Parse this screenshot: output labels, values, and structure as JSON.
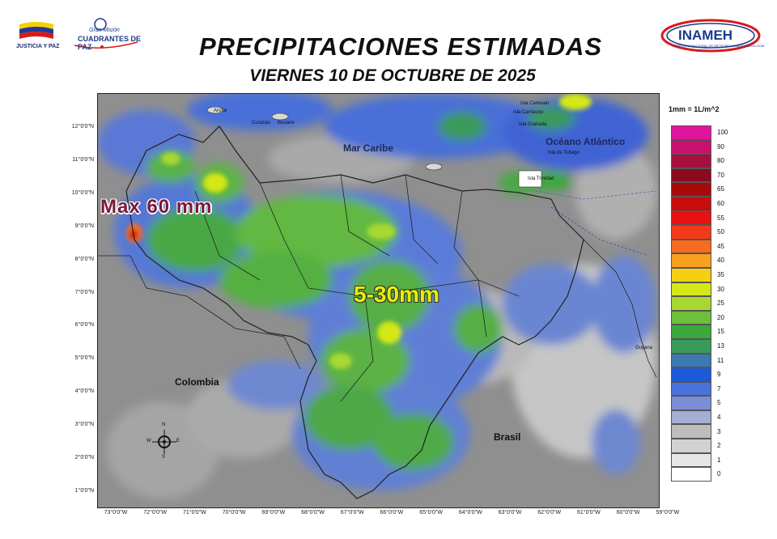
{
  "header": {
    "title": "PRECIPITACIONES ESTIMADAS",
    "subtitle": "VIERNES 10 DE OCTUBRE DE 2025"
  },
  "logos": {
    "left_text": "JUSTICIA Y PAZ",
    "mid_small": "Gran Misión",
    "mid_big": "CUADRANTES DE PAZ",
    "right_text": "INAMEH",
    "right_tiny": "INSTITUTO NACIONAL DE METEOROLOGÍA E HIDROLOGÍA"
  },
  "map": {
    "lat_ticks": [
      "12°0'0\"N",
      "11°0'0\"N",
      "10°0'0\"N",
      "9°0'0\"N",
      "8°0'0\"N",
      "7°0'0\"N",
      "6°0'0\"N",
      "5°0'0\"N",
      "4°0'0\"N",
      "3°0'0\"N",
      "2°0'0\"N",
      "1°0'0\"N"
    ],
    "lon_ticks": [
      "73°0'0\"W",
      "72°0'0\"W",
      "71°0'0\"W",
      "70°0'0\"W",
      "69°0'0\"W",
      "68°0'0\"W",
      "67°0'0\"W",
      "66°0'0\"W",
      "65°0'0\"W",
      "64°0'0\"W",
      "63°0'0\"W",
      "62°0'0\"W",
      "61°0'0\"W",
      "60°0'0\"W",
      "59°0'0\"W"
    ],
    "labels": {
      "mar_caribe": "Mar Caribe",
      "oceano": "Océano Atlántico",
      "colombia": "Colombia",
      "brasil": "Brasil",
      "guyana": "Guyana",
      "aruba": "Aruba",
      "curazao": "Curazao",
      "bonaire": "Bonaire",
      "carriacou": "Isla Carriacou",
      "canouan": "Isla Canouan",
      "granada": "Isla Granada",
      "tobago": "Isla de Tobago",
      "trinidad": "Isla Trinidad"
    },
    "annotation_max": "Max 60 mm",
    "annotation_range": "5-30mm",
    "compass": {
      "n": "N",
      "s": "S",
      "e": "E",
      "w": "W"
    }
  },
  "legend": {
    "title": "1mm = 1L/m^2",
    "items": [
      {
        "label": "100",
        "color": "#e0149a"
      },
      {
        "label": "90",
        "color": "#c8106e"
      },
      {
        "label": "80",
        "color": "#a5103f"
      },
      {
        "label": "70",
        "color": "#8b0a1e"
      },
      {
        "label": "65",
        "color": "#a80a0a"
      },
      {
        "label": "60",
        "color": "#c80c0c"
      },
      {
        "label": "55",
        "color": "#e81010"
      },
      {
        "label": "50",
        "color": "#f43a1a"
      },
      {
        "label": "45",
        "color": "#f86a20"
      },
      {
        "label": "40",
        "color": "#f8a020"
      },
      {
        "label": "35",
        "color": "#f4d010"
      },
      {
        "label": "30",
        "color": "#d4e818"
      },
      {
        "label": "25",
        "color": "#a8d830"
      },
      {
        "label": "20",
        "color": "#6cc03a"
      },
      {
        "label": "15",
        "color": "#3aa83a"
      },
      {
        "label": "13",
        "color": "#3a9a5a"
      },
      {
        "label": "11",
        "color": "#3a7ab0"
      },
      {
        "label": "9",
        "color": "#1e5ad8"
      },
      {
        "label": "7",
        "color": "#4a72dc"
      },
      {
        "label": "5",
        "color": "#7a8ed6"
      },
      {
        "label": "4",
        "color": "#a6aed4"
      },
      {
        "label": "3",
        "color": "#bdbdbd"
      },
      {
        "label": "2",
        "color": "#d2d2d2"
      },
      {
        "label": "1",
        "color": "#e6e6e6"
      },
      {
        "label": "0",
        "color": "#ffffff"
      }
    ]
  }
}
